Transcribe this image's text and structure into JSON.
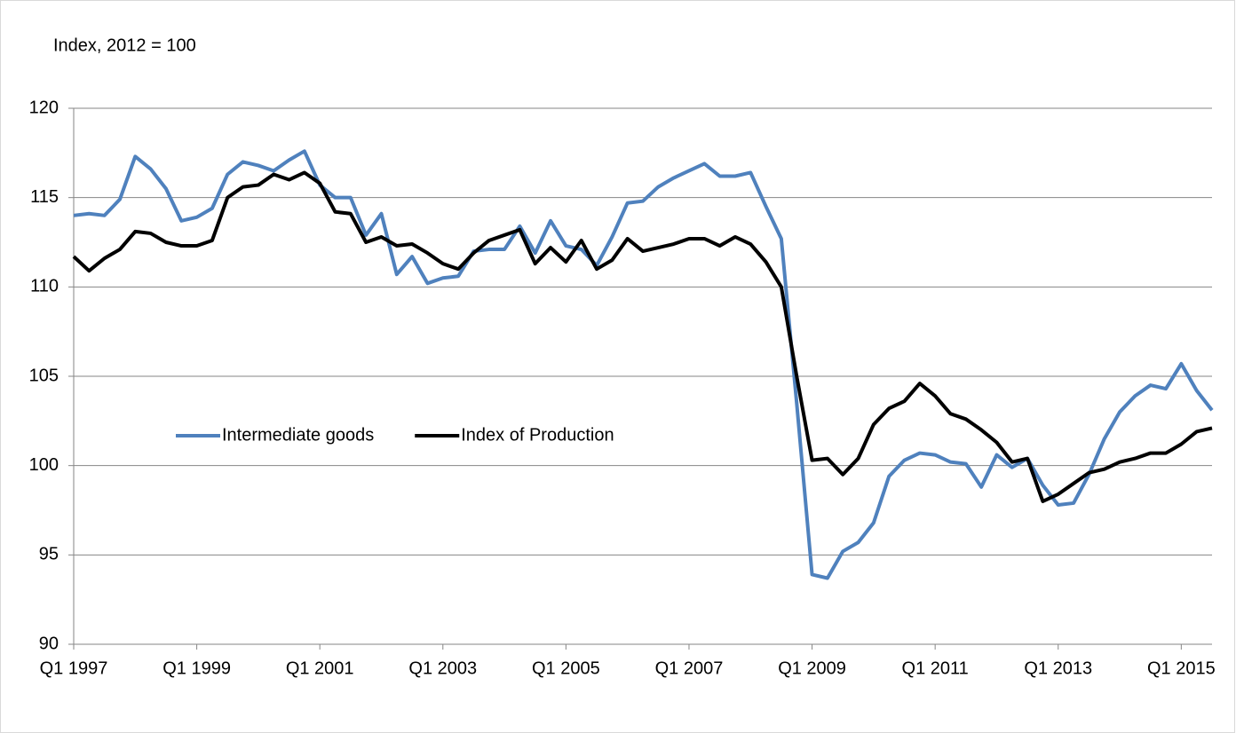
{
  "chart_data": {
    "type": "line",
    "y_label": "Index, 2012 = 100",
    "categories": [
      "Q1 1997",
      null,
      null,
      null,
      null,
      null,
      null,
      null,
      "Q1 1999",
      null,
      null,
      null,
      null,
      null,
      null,
      null,
      "Q1 2001",
      null,
      null,
      null,
      null,
      null,
      null,
      null,
      "Q1 2003",
      null,
      null,
      null,
      null,
      null,
      null,
      null,
      "Q1 2005",
      null,
      null,
      null,
      null,
      null,
      null,
      null,
      "Q1 2007",
      null,
      null,
      null,
      null,
      null,
      null,
      null,
      "Q1 2009",
      null,
      null,
      null,
      null,
      null,
      null,
      null,
      "Q1 2011",
      null,
      null,
      null,
      null,
      null,
      null,
      null,
      "Q1 2013",
      null,
      null,
      null,
      null,
      null,
      null,
      null,
      "Q1 2015",
      null,
      null
    ],
    "series": [
      {
        "name": "Intermediate goods",
        "color": "#4f81bd",
        "values": [
          114.0,
          114.1,
          114.0,
          114.9,
          117.3,
          116.6,
          115.5,
          113.7,
          113.9,
          114.4,
          116.3,
          117.0,
          116.8,
          116.5,
          117.1,
          117.6,
          115.7,
          115.0,
          115.0,
          112.9,
          114.1,
          110.7,
          111.7,
          110.2,
          110.5,
          110.6,
          112.0,
          112.1,
          112.1,
          113.4,
          111.9,
          113.7,
          112.3,
          112.1,
          111.2,
          112.8,
          114.7,
          114.8,
          115.6,
          116.1,
          116.5,
          116.9,
          116.2,
          116.2,
          116.4,
          114.5,
          112.7,
          103.5,
          93.9,
          93.7,
          95.2,
          95.7,
          96.8,
          99.4,
          100.3,
          100.7,
          100.6,
          100.2,
          100.1,
          98.8,
          100.6,
          99.9,
          100.4,
          98.9,
          97.8,
          97.9,
          99.5,
          101.5,
          103.0,
          103.9,
          104.5,
          104.3,
          105.7,
          104.2,
          103.1
        ]
      },
      {
        "name": "Index of Production",
        "color": "#000000",
        "values": [
          111.7,
          110.9,
          111.6,
          112.1,
          113.1,
          113.0,
          112.5,
          112.3,
          112.3,
          112.6,
          115.0,
          115.6,
          115.7,
          116.3,
          116.0,
          116.4,
          115.8,
          114.2,
          114.1,
          112.5,
          112.8,
          112.3,
          112.4,
          111.9,
          111.3,
          111.0,
          111.9,
          112.6,
          112.9,
          113.2,
          111.3,
          112.2,
          111.4,
          112.6,
          111.0,
          111.5,
          112.7,
          112.0,
          112.2,
          112.4,
          112.7,
          112.7,
          112.3,
          112.8,
          112.4,
          111.4,
          110.0,
          105.0,
          100.3,
          100.4,
          99.5,
          100.4,
          102.3,
          103.2,
          103.6,
          104.6,
          103.9,
          102.9,
          102.6,
          102.0,
          101.3,
          100.2,
          100.4,
          98.0,
          98.4,
          99.0,
          99.6,
          99.8,
          100.2,
          100.4,
          100.7,
          100.7,
          101.2,
          101.9,
          102.1
        ]
      }
    ],
    "ylim": [
      90,
      120
    ],
    "yticks": [
      90,
      95,
      100,
      105,
      110,
      115,
      120
    ],
    "grid": true,
    "legend": "center-left"
  }
}
